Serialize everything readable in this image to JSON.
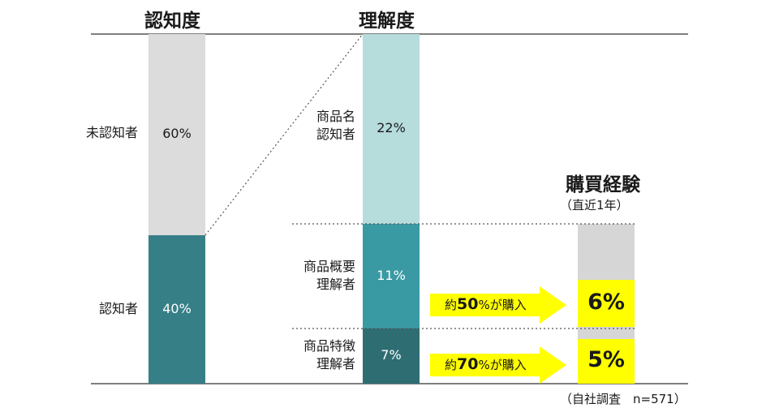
{
  "colors": {
    "unaware": "#dcdcdc",
    "aware": "#367f87",
    "name_aware": "#b6dcdc",
    "overview": "#3a9aa4",
    "feature": "#2e6e73",
    "purchase_bg": "#d6d6d6",
    "highlight": "#ffff00",
    "line": "#555555"
  },
  "chart_data": {
    "type": "bar",
    "stacked": true,
    "columns": [
      {
        "title": "認知度",
        "segments": [
          {
            "label": "未認知者",
            "value": 60,
            "value_label": "60%"
          },
          {
            "label": "認知者",
            "value": 40,
            "value_label": "40%"
          }
        ]
      },
      {
        "title": "理解度",
        "segments": [
          {
            "label": "商品名\n認知者",
            "value": 22,
            "value_label": "22%"
          },
          {
            "label": "商品概要\n理解者",
            "value": 11,
            "value_label": "11%"
          },
          {
            "label": "商品特徴\n理解者",
            "value": 7,
            "value_label": "7%"
          }
        ]
      },
      {
        "title": "購買経験",
        "subtitle": "（直近1年）",
        "segments": [
          {
            "label": "",
            "value": 6,
            "value_label": "6%"
          },
          {
            "label": "",
            "value": 5,
            "value_label": "5%"
          }
        ]
      }
    ],
    "annotations": [
      {
        "prefix": "約",
        "number": "50",
        "suffix": "%が購入"
      },
      {
        "prefix": "約",
        "number": "70",
        "suffix": "%が購入"
      }
    ],
    "source": "（自社調査　n=571）"
  }
}
